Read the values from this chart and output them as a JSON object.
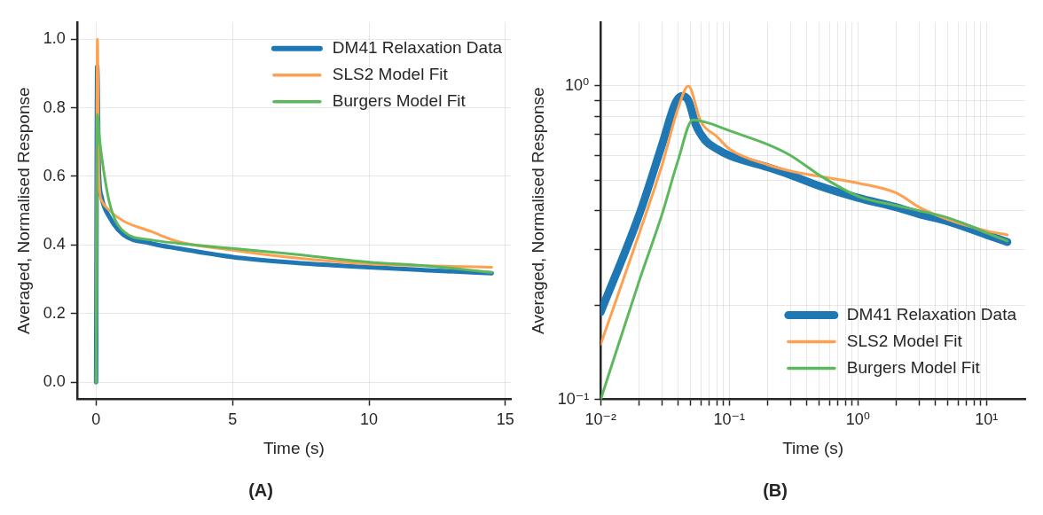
{
  "chart_data": [
    {
      "type": "line",
      "title": "(A)",
      "xlabel": "Time (s)",
      "ylabel": "Averaged, Normalised Response",
      "xlim": [
        -0.7,
        15.2
      ],
      "ylim": [
        -0.05,
        1.05
      ],
      "xticks": [
        0,
        5,
        10,
        15
      ],
      "yticks": [
        {
          "value": 0,
          "label": "0.0"
        },
        0.2,
        0.4,
        0.6,
        0.8,
        {
          "value": 1,
          "label": "1.0"
        }
      ],
      "grid": true,
      "legend": "top right",
      "marker": "none",
      "series": [
        {
          "name": "DM41 Relaxation Data",
          "color": "#1f77b4",
          "x": [
            0,
            0.04,
            0.1,
            0.2,
            0.5,
            1,
            2,
            3,
            5,
            7,
            10,
            12,
            14.5
          ],
          "values": [
            0,
            0.92,
            0.62,
            0.54,
            0.48,
            0.43,
            0.405,
            0.39,
            0.365,
            0.35,
            0.335,
            0.327,
            0.318
          ]
        },
        {
          "name": "SLS2 Model Fit",
          "color": "#fda04f",
          "x": [
            0,
            0.05,
            0.1,
            0.2,
            0.5,
            1,
            2,
            3,
            5,
            7,
            10,
            12,
            14.5
          ],
          "values": [
            0,
            1.0,
            0.6,
            0.53,
            0.5,
            0.47,
            0.44,
            0.41,
            0.385,
            0.365,
            0.345,
            0.34,
            0.335
          ]
        },
        {
          "name": "Burgers Model Fit",
          "color": "#5cb85c",
          "x": [
            0,
            0.05,
            0.1,
            0.2,
            0.5,
            1,
            2,
            3,
            5,
            7,
            10,
            12,
            14.5
          ],
          "values": [
            0,
            0.78,
            0.73,
            0.66,
            0.52,
            0.44,
            0.415,
            0.405,
            0.39,
            0.375,
            0.35,
            0.34,
            0.32
          ]
        }
      ]
    },
    {
      "type": "line",
      "title": "(B)",
      "xlabel": "Time (s)",
      "ylabel": "Averaged, Normalised Response",
      "log": "xy",
      "xlim": [
        0.01,
        20
      ],
      "ylim": [
        0.1,
        1.6
      ],
      "xticks": [
        {
          "value": 0.01,
          "label": "10⁻²"
        },
        {
          "value": 0.02,
          "label": null
        },
        {
          "value": 0.03,
          "label": null
        },
        {
          "value": 0.04,
          "label": null
        },
        {
          "value": 0.05,
          "label": null
        },
        {
          "value": 0.06,
          "label": null
        },
        {
          "value": 0.07,
          "label": null
        },
        {
          "value": 0.08,
          "label": null
        },
        {
          "value": 0.09,
          "label": null
        },
        {
          "value": 0.1,
          "label": "10⁻¹"
        },
        {
          "value": 0.2,
          "label": null
        },
        {
          "value": 0.3,
          "label": null
        },
        {
          "value": 0.4,
          "label": null
        },
        {
          "value": 0.5,
          "label": null
        },
        {
          "value": 0.6,
          "label": null
        },
        {
          "value": 0.7,
          "label": null
        },
        {
          "value": 0.8,
          "label": null
        },
        {
          "value": 0.9,
          "label": null
        },
        {
          "value": 1,
          "label": "10⁰"
        },
        {
          "value": 2,
          "label": null
        },
        {
          "value": 3,
          "label": null
        },
        {
          "value": 4,
          "label": null
        },
        {
          "value": 5,
          "label": null
        },
        {
          "value": 6,
          "label": null
        },
        {
          "value": 7,
          "label": null
        },
        {
          "value": 8,
          "label": null
        },
        {
          "value": 9,
          "label": null
        },
        {
          "value": 10,
          "label": "10¹"
        }
      ],
      "yticks": [
        {
          "value": 0.1,
          "label": "10⁻¹"
        },
        {
          "value": 0.2,
          "label": null
        },
        {
          "value": 0.3,
          "label": null
        },
        {
          "value": 0.4,
          "label": null
        },
        {
          "value": 0.5,
          "label": null
        },
        {
          "value": 0.6,
          "label": null
        },
        {
          "value": 0.7,
          "label": null
        },
        {
          "value": 0.8,
          "label": null
        },
        {
          "value": 0.9,
          "label": null
        },
        {
          "value": 1,
          "label": "10⁰"
        }
      ],
      "grid": true,
      "legend": "bottom right",
      "marker": "none",
      "series": [
        {
          "name": "DM41 Relaxation Data",
          "color": "#1f77b4",
          "x": [
            0.01,
            0.02,
            0.03,
            0.038,
            0.043,
            0.048,
            0.055,
            0.065,
            0.08,
            0.1,
            0.2,
            0.3,
            0.5,
            1,
            2,
            3,
            5,
            10,
            14.5
          ],
          "values": [
            0.19,
            0.39,
            0.65,
            0.88,
            0.93,
            0.9,
            0.75,
            0.67,
            0.63,
            0.6,
            0.55,
            0.52,
            0.48,
            0.44,
            0.41,
            0.39,
            0.37,
            0.335,
            0.318
          ]
        },
        {
          "name": "SLS2 Model Fit",
          "color": "#fda04f",
          "x": [
            0.01,
            0.02,
            0.03,
            0.04,
            0.048,
            0.06,
            0.08,
            0.1,
            0.2,
            0.3,
            0.5,
            1,
            2,
            3,
            5,
            10,
            14.5
          ],
          "values": [
            0.15,
            0.34,
            0.56,
            0.85,
            1.0,
            0.77,
            0.69,
            0.63,
            0.56,
            0.535,
            0.515,
            0.49,
            0.455,
            0.41,
            0.375,
            0.345,
            0.335
          ]
        },
        {
          "name": "Burgers Model Fit",
          "color": "#5cb85c",
          "x": [
            0.01,
            0.02,
            0.03,
            0.04,
            0.052,
            0.07,
            0.1,
            0.2,
            0.3,
            0.5,
            1,
            2,
            3,
            5,
            10,
            14.5
          ],
          "values": [
            0.1,
            0.24,
            0.39,
            0.58,
            0.78,
            0.76,
            0.72,
            0.65,
            0.6,
            0.52,
            0.445,
            0.415,
            0.4,
            0.38,
            0.34,
            0.32
          ]
        }
      ]
    }
  ]
}
